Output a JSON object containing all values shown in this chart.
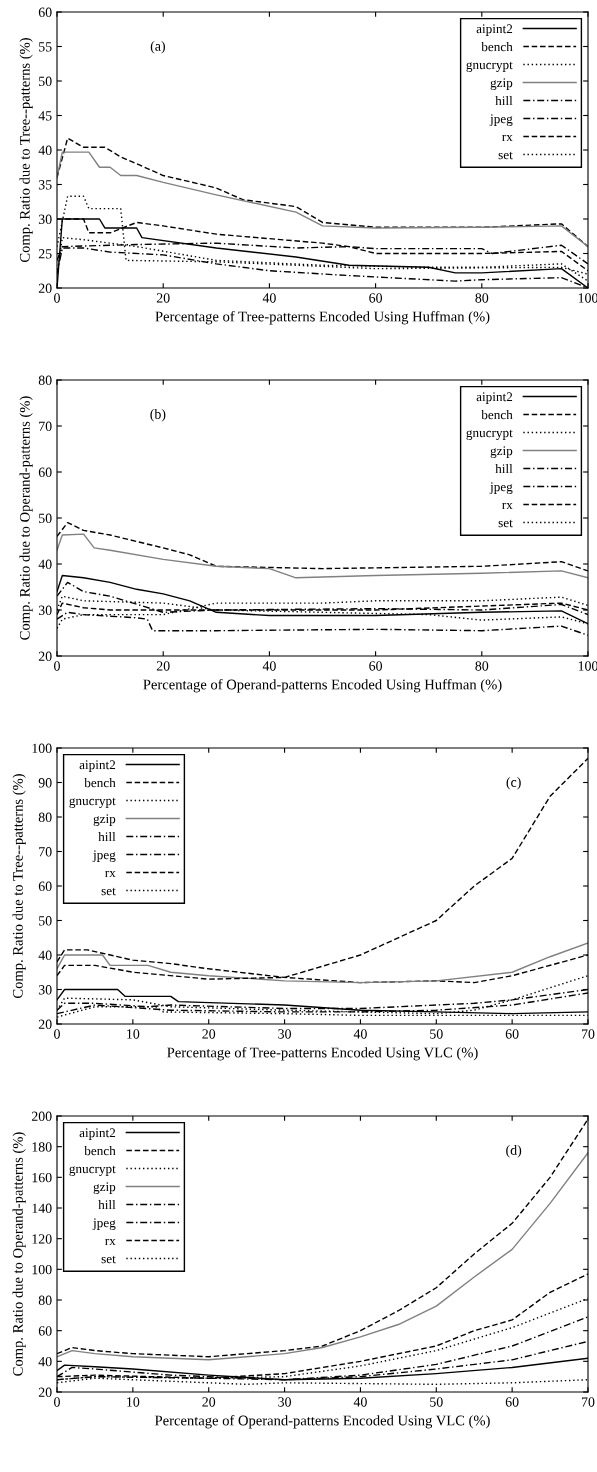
{
  "chart_data": [
    {
      "type": "line",
      "xlabel": "Percentage of Tree-patterns Encoded Using Huffman (%)",
      "ylabel": "Comp. Ratio due to Tree--patterns (%)",
      "annotations": [
        "(a)"
      ],
      "xlim": [
        0,
        100
      ],
      "xticks": [
        0,
        20,
        40,
        60,
        80,
        100
      ],
      "ylim": [
        20,
        60
      ],
      "yticks": [
        20,
        25,
        30,
        35,
        40,
        45,
        50,
        55,
        60
      ],
      "legend": "top right",
      "grid": false,
      "series": [
        {
          "name": "aipint2",
          "color": "#000000",
          "line_style": "solid",
          "x": [
            0,
            1,
            8,
            9,
            15,
            16,
            30,
            45,
            55,
            70,
            75,
            80,
            95,
            100
          ],
          "values": [
            20,
            30,
            30,
            28.7,
            28.7,
            27.3,
            25.8,
            24.5,
            23.3,
            23,
            22.2,
            22.2,
            22.8,
            20
          ]
        },
        {
          "name": "bench",
          "color": "#000000",
          "line_style": "dashed",
          "x": [
            0,
            2,
            5,
            9,
            12,
            15,
            20,
            30,
            35,
            45,
            50,
            60,
            80,
            95,
            100
          ],
          "values": [
            36,
            41.7,
            40.4,
            40.4,
            39,
            38,
            36.3,
            34.5,
            32.8,
            31.8,
            29.5,
            28.8,
            28.8,
            29.3,
            26
          ]
        },
        {
          "name": "gnucrypt",
          "color": "#000000",
          "line_style": "dotted",
          "x": [
            0,
            1,
            5,
            15,
            30,
            50,
            70,
            80,
            95,
            100
          ],
          "values": [
            22,
            27.3,
            27,
            26,
            24,
            23.3,
            23,
            23,
            23.5,
            21
          ]
        },
        {
          "name": "gzip",
          "color": "#808080",
          "line_style": "solid",
          "x": [
            0,
            1,
            6,
            8,
            10,
            12,
            15,
            20,
            30,
            45,
            50,
            60,
            80,
            95,
            100
          ],
          "values": [
            36,
            39.7,
            39.7,
            37.5,
            37.5,
            36.3,
            36.3,
            35.3,
            33.5,
            31,
            29,
            28.7,
            28.8,
            29,
            26
          ]
        },
        {
          "name": "hill",
          "color": "#000000",
          "line_style": "dashdot",
          "x": [
            0,
            1,
            15,
            30,
            45,
            55,
            60,
            80,
            82,
            95,
            100
          ],
          "values": [
            24,
            26,
            26.3,
            26.5,
            25.8,
            26,
            25.7,
            25.7,
            25,
            26.2,
            23.5
          ]
        },
        {
          "name": "jpeg",
          "color": "#000000",
          "line_style": "dashdot",
          "x": [
            0,
            1,
            5,
            10,
            20,
            30,
            40,
            55,
            75,
            80,
            95,
            100
          ],
          "values": [
            22,
            25.8,
            25.8,
            25.2,
            24.8,
            23.5,
            22.5,
            21.8,
            21,
            21.2,
            21.5,
            20
          ]
        },
        {
          "name": "rx",
          "color": "#000000",
          "line_style": "dashed",
          "x": [
            0,
            2,
            5,
            6,
            10,
            15,
            20,
            30,
            50,
            55,
            60,
            80,
            95,
            100
          ],
          "values": [
            30,
            30,
            30,
            28,
            28,
            29.5,
            29,
            27.8,
            26.5,
            26,
            25,
            25,
            25.3,
            22.5
          ]
        },
        {
          "name": "set",
          "color": "#000000",
          "line_style": "dotted",
          "x": [
            0,
            2,
            5,
            6,
            12,
            13,
            30,
            60,
            95,
            100
          ],
          "values": [
            26,
            33.3,
            33.3,
            31.5,
            31.5,
            24,
            23.8,
            22.8,
            23,
            22
          ]
        }
      ]
    },
    {
      "type": "line",
      "xlabel": "Percentage of Operand-patterns Encoded Using Huffman (%)",
      "ylabel": "Comp. Ratio due to Operand-patterns (%)",
      "annotations": [
        "(b)"
      ],
      "xlim": [
        0,
        100
      ],
      "xticks": [
        0,
        20,
        40,
        60,
        80,
        100
      ],
      "ylim": [
        20,
        80
      ],
      "yticks": [
        20,
        30,
        40,
        50,
        60,
        70,
        80
      ],
      "legend": "top right",
      "grid": false,
      "series": [
        {
          "name": "aipint2",
          "color": "#000000",
          "line_style": "solid",
          "x": [
            0,
            1,
            5,
            10,
            15,
            20,
            25,
            30,
            40,
            60,
            80,
            95,
            100
          ],
          "values": [
            34,
            37.5,
            37,
            36,
            34.5,
            33.5,
            32,
            29.5,
            28.8,
            28.8,
            29.5,
            29.8,
            27
          ]
        },
        {
          "name": "bench",
          "color": "#000000",
          "line_style": "dashed",
          "x": [
            0,
            2,
            5,
            10,
            20,
            25,
            30,
            50,
            80,
            95,
            100
          ],
          "values": [
            46,
            49,
            47.3,
            46.3,
            43.5,
            42,
            39.5,
            39,
            39.5,
            40.5,
            38.5
          ]
        },
        {
          "name": "gnucrypt",
          "color": "#000000",
          "line_style": "dotted",
          "x": [
            0,
            1,
            5,
            20,
            30,
            50,
            70,
            80,
            95,
            100
          ],
          "values": [
            30,
            33,
            32,
            31.5,
            30,
            29.5,
            29,
            27.8,
            28.5,
            27
          ]
        },
        {
          "name": "gzip",
          "color": "#808080",
          "line_style": "solid",
          "x": [
            0,
            1,
            5,
            7,
            10,
            20,
            30,
            40,
            45,
            60,
            80,
            95,
            100
          ],
          "values": [
            43,
            46.3,
            46.5,
            43.5,
            43,
            41,
            39.5,
            39,
            37,
            37.5,
            38,
            38.5,
            37
          ]
        },
        {
          "name": "hill",
          "color": "#000000",
          "line_style": "dashdot",
          "x": [
            0,
            2,
            5,
            10,
            20,
            30,
            60,
            80,
            95,
            100
          ],
          "values": [
            33,
            36,
            34,
            33,
            29.5,
            30,
            30.3,
            30,
            31.2,
            29
          ]
        },
        {
          "name": "jpeg",
          "color": "#000000",
          "line_style": "dashdot",
          "x": [
            0,
            2,
            5,
            15,
            17,
            18,
            30,
            60,
            80,
            95,
            100
          ],
          "values": [
            28,
            29.5,
            29,
            28.3,
            28,
            25.5,
            25.5,
            25.8,
            25.5,
            26.5,
            24.5
          ]
        },
        {
          "name": "rx",
          "color": "#000000",
          "line_style": "dashed",
          "x": [
            0,
            1,
            5,
            10,
            20,
            30,
            60,
            95,
            100
          ],
          "values": [
            29,
            31.5,
            30.5,
            30,
            30,
            30,
            30,
            31.5,
            30
          ]
        },
        {
          "name": "set",
          "color": "#000000",
          "line_style": "dotted",
          "x": [
            0,
            1,
            5,
            10,
            20,
            30,
            50,
            60,
            80,
            95,
            100
          ],
          "values": [
            26,
            28,
            29,
            29,
            29,
            31.5,
            31.5,
            32,
            32,
            32.8,
            31
          ]
        }
      ]
    },
    {
      "type": "line",
      "xlabel": "Percentage of Tree-patterns Encoded Using VLC (%)",
      "ylabel": "Comp. Ratio due to Tree--patterns (%)",
      "annotations": [
        "(c)"
      ],
      "xlim": [
        0,
        70
      ],
      "xticks": [
        0,
        10,
        20,
        30,
        40,
        50,
        60,
        70
      ],
      "ylim": [
        20,
        100
      ],
      "yticks": [
        20,
        30,
        40,
        50,
        60,
        70,
        80,
        90,
        100
      ],
      "legend": "top left",
      "grid": false,
      "series": [
        {
          "name": "aipint2",
          "color": "#000000",
          "line_style": "solid",
          "x": [
            0,
            1,
            8,
            9,
            15,
            16,
            30,
            40,
            50,
            60,
            70
          ],
          "values": [
            27,
            30,
            30,
            28,
            28,
            26.5,
            25.5,
            24,
            23.5,
            23,
            23.5
          ]
        },
        {
          "name": "bench",
          "color": "#000000",
          "line_style": "dashed",
          "x": [
            0,
            1,
            4,
            10,
            15,
            20,
            30,
            40,
            50,
            55,
            60,
            70
          ],
          "values": [
            38,
            41.5,
            41.5,
            38.5,
            37.5,
            36,
            33.5,
            32,
            32.5,
            32,
            34,
            40
          ]
        },
        {
          "name": "gnucrypt",
          "color": "#000000",
          "line_style": "dotted",
          "x": [
            0,
            1,
            10,
            15,
            30,
            40,
            50,
            55,
            60,
            70
          ],
          "values": [
            24,
            27.5,
            27,
            25,
            24,
            23.5,
            23,
            24,
            27,
            34
          ]
        },
        {
          "name": "gzip",
          "color": "#808080",
          "line_style": "solid",
          "x": [
            0,
            1,
            6,
            7,
            12,
            15,
            20,
            30,
            40,
            50,
            60,
            65,
            70
          ],
          "values": [
            36,
            40,
            40,
            37,
            37,
            35,
            34,
            32.5,
            32,
            32.5,
            35,
            39.5,
            43.5
          ]
        },
        {
          "name": "hill",
          "color": "#000000",
          "line_style": "dashdot",
          "x": [
            0,
            1,
            5,
            12,
            15,
            30,
            40,
            50,
            55,
            60,
            70
          ],
          "values": [
            24,
            26,
            26,
            25,
            25.5,
            24.5,
            24.5,
            25.5,
            26,
            27,
            30
          ]
        },
        {
          "name": "jpeg",
          "color": "#000000",
          "line_style": "dashdot",
          "x": [
            0,
            5,
            15,
            30,
            40,
            50,
            60,
            70
          ],
          "values": [
            23,
            25.5,
            24,
            23.5,
            23.5,
            24,
            25.5,
            29
          ]
        },
        {
          "name": "rx",
          "color": "#000000",
          "line_style": "dashed",
          "x": [
            0,
            1,
            5,
            10,
            20,
            30,
            40,
            50,
            55,
            60,
            65,
            70
          ],
          "values": [
            34,
            37,
            37,
            35,
            33,
            33.5,
            40,
            50,
            60,
            68,
            86,
            97
          ]
        },
        {
          "name": "set",
          "color": "#000000",
          "line_style": "dotted",
          "x": [
            0,
            5,
            13,
            14,
            30,
            40,
            50,
            60,
            70
          ],
          "values": [
            22,
            25,
            25,
            23.5,
            23,
            22.5,
            22.5,
            22.5,
            22.5
          ]
        }
      ]
    },
    {
      "type": "line",
      "xlabel": "Percentage of Operand-patterns Encoded Using VLC (%)",
      "ylabel": "Comp. Ratio due to Operand-patterns (%)",
      "annotations": [
        "(d)"
      ],
      "xlim": [
        0,
        70
      ],
      "xticks": [
        0,
        10,
        20,
        30,
        40,
        50,
        60,
        70
      ],
      "ylim": [
        20,
        200
      ],
      "yticks": [
        20,
        40,
        60,
        80,
        100,
        120,
        140,
        160,
        180,
        200
      ],
      "legend": "top left",
      "grid": false,
      "series": [
        {
          "name": "aipint2",
          "color": "#000000",
          "line_style": "solid",
          "x": [
            0,
            1,
            5,
            10,
            20,
            30,
            40,
            50,
            60,
            70
          ],
          "values": [
            34,
            37.5,
            36.5,
            35,
            31,
            28,
            29,
            32,
            36,
            42
          ]
        },
        {
          "name": "bench",
          "color": "#000000",
          "line_style": "dashed",
          "x": [
            0,
            2,
            5,
            10,
            20,
            30,
            35,
            40,
            45,
            50,
            55,
            60,
            65,
            70
          ],
          "values": [
            45,
            49,
            47,
            45,
            43,
            47,
            50,
            60,
            73,
            88,
            110,
            130,
            160,
            198
          ]
        },
        {
          "name": "gnucrypt",
          "color": "#000000",
          "line_style": "dotted",
          "x": [
            0,
            5,
            20,
            30,
            40,
            50,
            60,
            70
          ],
          "values": [
            28,
            30,
            29,
            30,
            37,
            47,
            62,
            81
          ]
        },
        {
          "name": "gzip",
          "color": "#808080",
          "line_style": "solid",
          "x": [
            0,
            2,
            5,
            10,
            20,
            30,
            35,
            40,
            45,
            50,
            55,
            60,
            65,
            70
          ],
          "values": [
            43,
            47,
            45,
            43,
            41,
            45,
            49,
            56,
            64,
            76,
            95,
            113,
            143,
            176
          ]
        },
        {
          "name": "hill",
          "color": "#000000",
          "line_style": "dashdot",
          "x": [
            0,
            2,
            5,
            15,
            20,
            30,
            40,
            50,
            60,
            65,
            70
          ],
          "values": [
            30,
            36,
            35,
            31,
            30,
            28,
            30,
            35,
            41,
            47,
            53
          ]
        },
        {
          "name": "jpeg",
          "color": "#000000",
          "line_style": "dashdot",
          "x": [
            0,
            5,
            20,
            30,
            40,
            50,
            60,
            70
          ],
          "values": [
            28,
            30,
            29,
            28,
            31,
            38,
            50,
            69
          ]
        },
        {
          "name": "rx",
          "color": "#000000",
          "line_style": "dashed",
          "x": [
            0,
            5,
            20,
            30,
            40,
            50,
            55,
            60,
            65,
            70
          ],
          "values": [
            30,
            31,
            29,
            32,
            40,
            50,
            60,
            67,
            85,
            97
          ]
        },
        {
          "name": "set",
          "color": "#000000",
          "line_style": "dotted",
          "x": [
            0,
            5,
            15,
            25,
            30,
            40,
            50,
            60,
            70
          ],
          "values": [
            26,
            29,
            27,
            25,
            26,
            25.5,
            25,
            26,
            28
          ]
        }
      ]
    }
  ]
}
